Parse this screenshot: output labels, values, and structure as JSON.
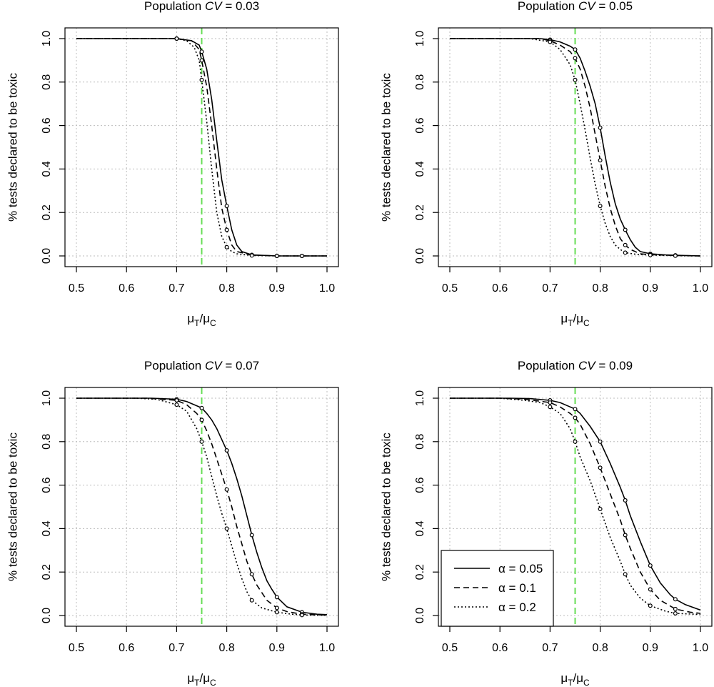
{
  "chart_data": [
    {
      "type": "line",
      "title": "Population CV = 0.03",
      "title_prefix": "Population ",
      "title_italic": "CV",
      "title_suffix": " = 0.03",
      "xlabel": "μT/μC",
      "xlabel_parts": {
        "num": "μ",
        "num_sub": "T",
        "slash": "/",
        "den": "μ",
        "den_sub": "C"
      },
      "ylabel": "% tests declared to be toxic",
      "xlim": [
        0.5,
        1.0
      ],
      "ylim": [
        0.0,
        1.0
      ],
      "x_ticks": [
        "0.5",
        "0.6",
        "0.7",
        "0.8",
        "0.9",
        "1.0"
      ],
      "y_ticks": [
        "0.0",
        "0.2",
        "0.4",
        "0.6",
        "0.8",
        "1.0"
      ],
      "grid": true,
      "reference_line": {
        "x": 0.75,
        "color": "#66dd55",
        "style": "dashed"
      },
      "series": [
        {
          "style": "solid",
          "x": [
            0.5,
            0.7,
            0.73,
            0.745,
            0.75,
            0.76,
            0.77,
            0.78,
            0.79,
            0.8,
            0.81,
            0.82,
            0.83,
            0.85,
            0.9,
            0.95,
            1.0
          ],
          "y": [
            1.0,
            1.0,
            0.99,
            0.97,
            0.94,
            0.86,
            0.72,
            0.53,
            0.35,
            0.23,
            0.12,
            0.05,
            0.02,
            0.005,
            0.0,
            0.0,
            0.0
          ],
          "markers": [
            0.7,
            0.75,
            0.8,
            0.85,
            0.9,
            0.95
          ]
        },
        {
          "style": "dashed",
          "x": [
            0.5,
            0.7,
            0.73,
            0.745,
            0.75,
            0.76,
            0.77,
            0.78,
            0.79,
            0.8,
            0.81,
            0.82,
            0.85,
            0.9,
            0.95,
            1.0
          ],
          "y": [
            1.0,
            1.0,
            0.99,
            0.95,
            0.9,
            0.78,
            0.6,
            0.4,
            0.22,
            0.12,
            0.05,
            0.02,
            0.004,
            0.0,
            0.0,
            0.0
          ],
          "markers": [
            0.7,
            0.75,
            0.8,
            0.85,
            0.9,
            0.95
          ]
        },
        {
          "style": "dotted",
          "x": [
            0.5,
            0.7,
            0.72,
            0.735,
            0.745,
            0.75,
            0.76,
            0.77,
            0.78,
            0.79,
            0.8,
            0.81,
            0.82,
            0.85,
            0.9,
            0.95,
            1.0
          ],
          "y": [
            1.0,
            1.0,
            0.99,
            0.96,
            0.9,
            0.81,
            0.62,
            0.4,
            0.2,
            0.09,
            0.04,
            0.02,
            0.01,
            0.002,
            0.0,
            0.0,
            0.0
          ],
          "markers": [
            0.7,
            0.75,
            0.8,
            0.85,
            0.9,
            0.95
          ]
        }
      ]
    },
    {
      "type": "line",
      "title": "Population CV = 0.05",
      "title_prefix": "Population ",
      "title_italic": "CV",
      "title_suffix": " = 0.05",
      "xlabel": "μT/μC",
      "xlabel_parts": {
        "num": "μ",
        "num_sub": "T",
        "slash": "/",
        "den": "μ",
        "den_sub": "C"
      },
      "ylabel": "% tests declared to be toxic",
      "xlim": [
        0.5,
        1.0
      ],
      "ylim": [
        0.0,
        1.0
      ],
      "x_ticks": [
        "0.5",
        "0.6",
        "0.7",
        "0.8",
        "0.9",
        "1.0"
      ],
      "y_ticks": [
        "0.0",
        "0.2",
        "0.4",
        "0.6",
        "0.8",
        "1.0"
      ],
      "grid": true,
      "reference_line": {
        "x": 0.75,
        "color": "#66dd55",
        "style": "dashed"
      },
      "series": [
        {
          "style": "solid",
          "x": [
            0.5,
            0.68,
            0.7,
            0.72,
            0.74,
            0.75,
            0.76,
            0.77,
            0.78,
            0.79,
            0.8,
            0.81,
            0.82,
            0.83,
            0.84,
            0.85,
            0.86,
            0.87,
            0.88,
            0.9,
            0.93,
            0.95,
            1.0
          ],
          "y": [
            1.0,
            1.0,
            0.995,
            0.985,
            0.965,
            0.95,
            0.91,
            0.85,
            0.78,
            0.7,
            0.59,
            0.46,
            0.34,
            0.24,
            0.17,
            0.12,
            0.075,
            0.04,
            0.02,
            0.01,
            0.005,
            0.003,
            0.0
          ],
          "markers": [
            0.7,
            0.75,
            0.8,
            0.85,
            0.9,
            0.95
          ]
        },
        {
          "style": "dashed",
          "x": [
            0.5,
            0.68,
            0.7,
            0.72,
            0.74,
            0.75,
            0.76,
            0.77,
            0.78,
            0.79,
            0.8,
            0.81,
            0.82,
            0.83,
            0.84,
            0.85,
            0.86,
            0.88,
            0.9,
            0.95,
            1.0
          ],
          "y": [
            1.0,
            1.0,
            0.99,
            0.97,
            0.94,
            0.91,
            0.86,
            0.78,
            0.68,
            0.56,
            0.44,
            0.32,
            0.22,
            0.14,
            0.08,
            0.05,
            0.03,
            0.01,
            0.006,
            0.002,
            0.0
          ],
          "markers": [
            0.7,
            0.75,
            0.8,
            0.85,
            0.9,
            0.95
          ]
        },
        {
          "style": "dotted",
          "x": [
            0.5,
            0.66,
            0.7,
            0.72,
            0.74,
            0.75,
            0.76,
            0.77,
            0.78,
            0.79,
            0.8,
            0.81,
            0.82,
            0.83,
            0.84,
            0.85,
            0.87,
            0.9,
            0.95,
            1.0
          ],
          "y": [
            1.0,
            1.0,
            0.985,
            0.95,
            0.88,
            0.81,
            0.7,
            0.58,
            0.45,
            0.33,
            0.23,
            0.15,
            0.09,
            0.05,
            0.03,
            0.015,
            0.008,
            0.004,
            0.001,
            0.0
          ],
          "markers": [
            0.7,
            0.75,
            0.8,
            0.85,
            0.9,
            0.95
          ]
        }
      ]
    },
    {
      "type": "line",
      "title": "Population CV = 0.07",
      "title_prefix": "Population ",
      "title_italic": "CV",
      "title_suffix": " = 0.07",
      "xlabel": "μT/μC",
      "xlabel_parts": {
        "num": "μ",
        "num_sub": "T",
        "slash": "/",
        "den": "μ",
        "den_sub": "C"
      },
      "ylabel": "% tests declared to be toxic",
      "xlim": [
        0.5,
        1.0
      ],
      "ylim": [
        0.0,
        1.0
      ],
      "x_ticks": [
        "0.5",
        "0.6",
        "0.7",
        "0.8",
        "0.9",
        "1.0"
      ],
      "y_ticks": [
        "0.0",
        "0.2",
        "0.4",
        "0.6",
        "0.8",
        "1.0"
      ],
      "grid": true,
      "reference_line": {
        "x": 0.75,
        "color": "#66dd55",
        "style": "dashed"
      },
      "series": [
        {
          "style": "solid",
          "x": [
            0.5,
            0.65,
            0.7,
            0.72,
            0.74,
            0.75,
            0.76,
            0.77,
            0.78,
            0.79,
            0.8,
            0.81,
            0.82,
            0.83,
            0.84,
            0.85,
            0.86,
            0.87,
            0.88,
            0.89,
            0.9,
            0.92,
            0.95,
            0.98,
            1.0
          ],
          "y": [
            1.0,
            1.0,
            0.995,
            0.985,
            0.965,
            0.955,
            0.93,
            0.9,
            0.86,
            0.81,
            0.76,
            0.7,
            0.63,
            0.55,
            0.46,
            0.37,
            0.29,
            0.22,
            0.16,
            0.12,
            0.085,
            0.04,
            0.015,
            0.006,
            0.004
          ],
          "markers": [
            0.7,
            0.75,
            0.8,
            0.85,
            0.9,
            0.95
          ]
        },
        {
          "style": "dashed",
          "x": [
            0.5,
            0.64,
            0.7,
            0.72,
            0.74,
            0.75,
            0.76,
            0.77,
            0.78,
            0.79,
            0.8,
            0.81,
            0.82,
            0.83,
            0.84,
            0.85,
            0.86,
            0.88,
            0.9,
            0.92,
            0.95,
            1.0
          ],
          "y": [
            1.0,
            1.0,
            0.99,
            0.97,
            0.93,
            0.9,
            0.85,
            0.79,
            0.72,
            0.65,
            0.58,
            0.5,
            0.41,
            0.33,
            0.25,
            0.19,
            0.14,
            0.07,
            0.035,
            0.018,
            0.006,
            0.002
          ],
          "markers": [
            0.7,
            0.75,
            0.8,
            0.85,
            0.9,
            0.95
          ]
        },
        {
          "style": "dotted",
          "x": [
            0.5,
            0.62,
            0.66,
            0.7,
            0.72,
            0.74,
            0.75,
            0.76,
            0.77,
            0.78,
            0.79,
            0.8,
            0.81,
            0.82,
            0.83,
            0.84,
            0.85,
            0.87,
            0.9,
            0.93,
            0.95,
            1.0
          ],
          "y": [
            1.0,
            1.0,
            0.995,
            0.97,
            0.94,
            0.86,
            0.8,
            0.73,
            0.64,
            0.55,
            0.47,
            0.4,
            0.32,
            0.24,
            0.17,
            0.11,
            0.07,
            0.035,
            0.015,
            0.006,
            0.002,
            0.001
          ],
          "markers": [
            0.7,
            0.75,
            0.8,
            0.85,
            0.9,
            0.95
          ]
        }
      ]
    },
    {
      "type": "line",
      "title": "Population CV = 0.09",
      "title_prefix": "Population ",
      "title_italic": "CV",
      "title_suffix": " = 0.09",
      "xlabel": "μT/μC",
      "xlabel_parts": {
        "num": "μ",
        "num_sub": "T",
        "slash": "/",
        "den": "μ",
        "den_sub": "C"
      },
      "ylabel": "% tests declared to be toxic",
      "xlim": [
        0.5,
        1.0
      ],
      "ylim": [
        0.0,
        1.0
      ],
      "x_ticks": [
        "0.5",
        "0.6",
        "0.7",
        "0.8",
        "0.9",
        "1.0"
      ],
      "y_ticks": [
        "0.0",
        "0.2",
        "0.4",
        "0.6",
        "0.8",
        "1.0"
      ],
      "grid": true,
      "reference_line": {
        "x": 0.75,
        "color": "#66dd55",
        "style": "dashed"
      },
      "legend": {
        "position": "bottom-left",
        "entries": [
          {
            "style": "solid",
            "label": "α = 0.05",
            "symbol": "α",
            "value_text": " = 0.05"
          },
          {
            "style": "dashed",
            "label": "α = 0.1",
            "symbol": "α",
            "value_text": " = 0.1"
          },
          {
            "style": "dotted",
            "label": "α = 0.2",
            "symbol": "α",
            "value_text": " = 0.2"
          }
        ]
      },
      "series": [
        {
          "style": "solid",
          "x": [
            0.5,
            0.62,
            0.66,
            0.7,
            0.72,
            0.74,
            0.75,
            0.76,
            0.78,
            0.8,
            0.82,
            0.84,
            0.85,
            0.86,
            0.88,
            0.9,
            0.92,
            0.94,
            0.95,
            0.97,
            1.0
          ],
          "y": [
            1.0,
            1.0,
            0.998,
            0.99,
            0.98,
            0.96,
            0.95,
            0.93,
            0.87,
            0.8,
            0.7,
            0.59,
            0.53,
            0.46,
            0.34,
            0.23,
            0.15,
            0.095,
            0.075,
            0.05,
            0.025
          ],
          "markers": [
            0.7,
            0.75,
            0.8,
            0.85,
            0.9,
            0.95
          ]
        },
        {
          "style": "dashed",
          "x": [
            0.5,
            0.6,
            0.65,
            0.7,
            0.72,
            0.74,
            0.75,
            0.76,
            0.78,
            0.8,
            0.82,
            0.84,
            0.85,
            0.86,
            0.88,
            0.9,
            0.92,
            0.95,
            0.98,
            1.0
          ],
          "y": [
            1.0,
            1.0,
            0.995,
            0.98,
            0.96,
            0.93,
            0.91,
            0.88,
            0.79,
            0.68,
            0.56,
            0.44,
            0.37,
            0.31,
            0.2,
            0.12,
            0.07,
            0.03,
            0.015,
            0.01
          ],
          "markers": [
            0.7,
            0.75,
            0.8,
            0.85,
            0.9,
            0.95
          ]
        },
        {
          "style": "dotted",
          "x": [
            0.5,
            0.6,
            0.65,
            0.68,
            0.7,
            0.72,
            0.74,
            0.75,
            0.76,
            0.78,
            0.8,
            0.82,
            0.84,
            0.85,
            0.86,
            0.88,
            0.9,
            0.93,
            0.95,
            1.0
          ],
          "y": [
            1.0,
            1.0,
            0.99,
            0.98,
            0.96,
            0.93,
            0.86,
            0.8,
            0.73,
            0.62,
            0.49,
            0.36,
            0.25,
            0.19,
            0.14,
            0.08,
            0.045,
            0.02,
            0.01,
            0.005
          ],
          "markers": [
            0.7,
            0.75,
            0.8,
            0.85,
            0.9,
            0.95
          ]
        }
      ]
    }
  ]
}
